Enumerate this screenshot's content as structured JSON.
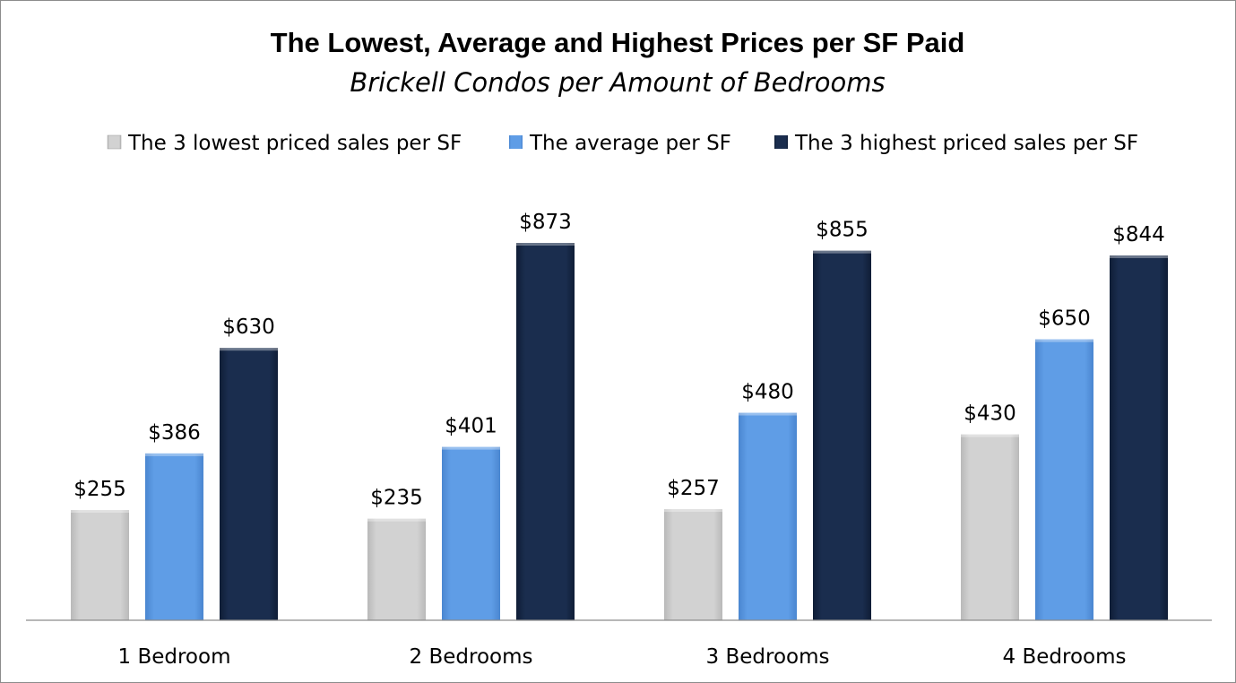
{
  "chart_data": {
    "type": "bar",
    "title": "The Lowest, Average and Highest Prices per SF Paid",
    "subtitle": "Brickell Condos per Amount of Bedrooms",
    "categories": [
      "1 Bedroom",
      "2 Bedrooms",
      "3 Bedrooms",
      "4 Bedrooms"
    ],
    "series": [
      {
        "name": "The 3 lowest priced sales per SF",
        "values": [
          255,
          235,
          257,
          430
        ],
        "labels": [
          "$255",
          "$235",
          "$257",
          "$430"
        ],
        "color": "#cccccc"
      },
      {
        "name": "The average per SF",
        "values": [
          386,
          401,
          480,
          650
        ],
        "labels": [
          "$386",
          "$401",
          "$480",
          "$650"
        ],
        "color": "#5b9be5"
      },
      {
        "name": "The 3 highest priced sales per SF",
        "values": [
          630,
          873,
          855,
          844
        ],
        "labels": [
          "$630",
          "$873",
          "$855",
          "$844"
        ],
        "color": "#17294a"
      }
    ],
    "ylim": [
      0,
      873
    ],
    "value_axis_visible": false,
    "grid": false,
    "legend_position": "top",
    "data_labels": true
  }
}
